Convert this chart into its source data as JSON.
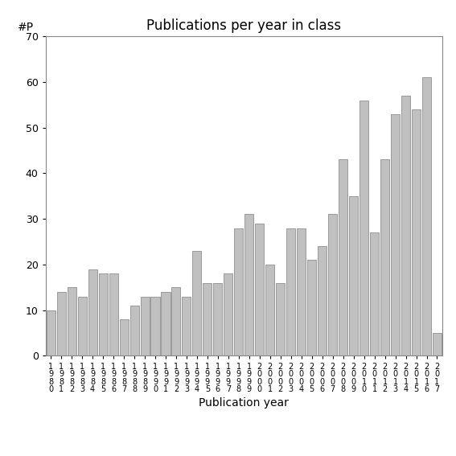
{
  "title": "Publications per year in class",
  "xlabel": "Publication year",
  "ylabel": "#P",
  "ylim": [
    0,
    70
  ],
  "yticks": [
    0,
    10,
    20,
    30,
    40,
    50,
    60,
    70
  ],
  "years": [
    "1\n9\n8\n0",
    "1\n9\n8\n1",
    "1\n9\n8\n2",
    "1\n9\n8\n3",
    "1\n9\n8\n4",
    "1\n9\n8\n5",
    "1\n9\n8\n6",
    "1\n9\n8\n7",
    "1\n9\n8\n8",
    "1\n9\n8\n9",
    "1\n9\n9\n0",
    "1\n9\n9\n1",
    "1\n9\n9\n2",
    "1\n9\n9\n3",
    "1\n9\n9\n4",
    "1\n9\n9\n5",
    "1\n9\n9\n6",
    "1\n9\n9\n7",
    "1\n9\n9\n8",
    "1\n9\n9\n9",
    "2\n0\n0\n0",
    "2\n0\n0\n1",
    "2\n0\n0\n2",
    "2\n0\n0\n3",
    "2\n0\n0\n4",
    "2\n0\n0\n5",
    "2\n0\n0\n6",
    "2\n0\n0\n7",
    "2\n0\n0\n8",
    "2\n0\n0\n9",
    "2\n0\n1\n0",
    "2\n0\n1\n1",
    "2\n0\n1\n2",
    "2\n0\n1\n3",
    "2\n0\n1\n4",
    "2\n0\n1\n5",
    "2\n0\n1\n6",
    "2\n0\n1\n7"
  ],
  "values": [
    10,
    14,
    15,
    13,
    19,
    18,
    18,
    8,
    11,
    13,
    13,
    14,
    15,
    13,
    23,
    16,
    16,
    18,
    28,
    31,
    29,
    20,
    16,
    28,
    28,
    21,
    24,
    31,
    43,
    35,
    56,
    27,
    43,
    53,
    57,
    54,
    61,
    5
  ],
  "bar_color": "#c0c0c0",
  "bar_edge_color": "#808080",
  "background_color": "#ffffff",
  "title_fontsize": 12,
  "label_fontsize": 10,
  "tick_fontsize": 9,
  "xtick_fontsize": 7
}
